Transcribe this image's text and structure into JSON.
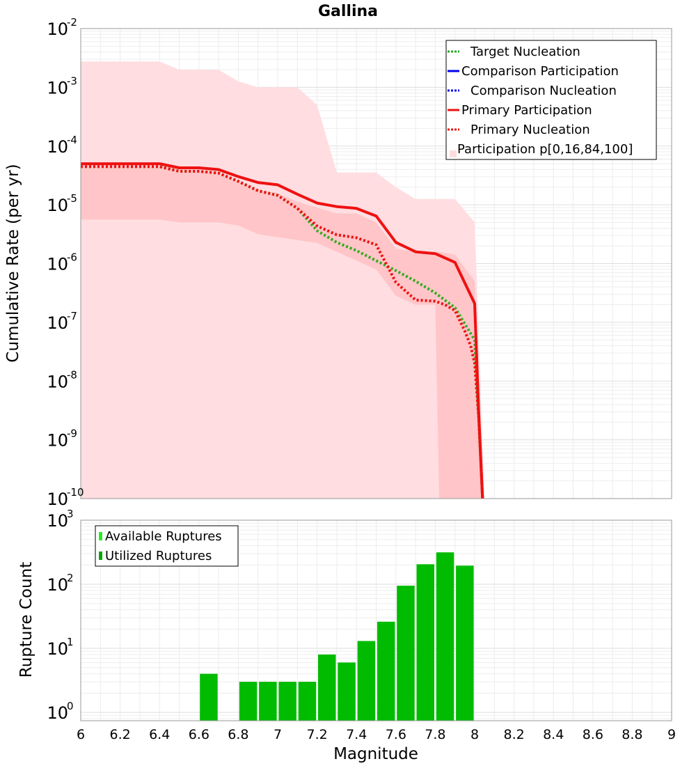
{
  "chart_data": [
    {
      "type": "line",
      "title": "Gallina",
      "xlabel": "",
      "ylabel": "Cumulative Rate (per yr)",
      "xlim": [
        6,
        9
      ],
      "ylim_log10": [
        -10,
        -2
      ],
      "y_ticks": [
        {
          "base": "10",
          "exp": "-2",
          "value": -2
        },
        {
          "base": "10",
          "exp": "-3",
          "value": -3
        },
        {
          "base": "10",
          "exp": "-4",
          "value": -4
        },
        {
          "base": "10",
          "exp": "-5",
          "value": -5
        },
        {
          "base": "10",
          "exp": "-6",
          "value": -6
        },
        {
          "base": "10",
          "exp": "-7",
          "value": -7
        },
        {
          "base": "10",
          "exp": "-8",
          "value": -8
        },
        {
          "base": "10",
          "exp": "-9",
          "value": -9
        },
        {
          "base": "10",
          "exp": "-10",
          "value": -10
        }
      ],
      "legend": [
        {
          "label": "Target Nucleation",
          "color": "#22aa22",
          "style": "dotted"
        },
        {
          "label": "Comparison Participation",
          "color": "#0000ee",
          "style": "solid"
        },
        {
          "label": "Comparison Nucleation",
          "color": "#0000ee",
          "style": "dotted"
        },
        {
          "label": "Primary Participation",
          "color": "#ee1111",
          "style": "solid"
        },
        {
          "label": "Primary Nucleation",
          "color": "#ee1111",
          "style": "dotted"
        },
        {
          "label": "Participation p[0,16,84,100]",
          "color": "#ffdddd",
          "style": "band"
        }
      ],
      "legend_position": "top-right",
      "bands": {
        "outer": {
          "color": "#ffdde0",
          "x": [
            6.0,
            6.1,
            6.2,
            6.3,
            6.4,
            6.5,
            6.6,
            6.7,
            6.8,
            6.9,
            7.0,
            7.1,
            7.2,
            7.3,
            7.4,
            7.5,
            7.6,
            7.7,
            7.8,
            7.9,
            8.0,
            8.05
          ],
          "upper_log10": [
            -2.56,
            -2.56,
            -2.56,
            -2.56,
            -2.56,
            -2.7,
            -2.7,
            -2.7,
            -2.9,
            -3.0,
            -3.0,
            -3.0,
            -3.3,
            -4.45,
            -4.45,
            -4.45,
            -4.7,
            -4.9,
            -4.9,
            -4.9,
            -5.3,
            -10
          ],
          "lower_log10": [
            -10,
            -10,
            -10,
            -10,
            -10,
            -10,
            -10,
            -10,
            -10,
            -10,
            -10,
            -10,
            -10,
            -10,
            -10,
            -10,
            -10,
            -10,
            -10,
            -10,
            -10,
            -10
          ]
        },
        "inner": {
          "color": "#ffc5c8",
          "x": [
            6.0,
            6.1,
            6.2,
            6.3,
            6.4,
            6.5,
            6.6,
            6.7,
            6.8,
            6.9,
            7.0,
            7.1,
            7.2,
            7.3,
            7.4,
            7.5,
            7.6,
            7.7,
            7.8,
            7.82,
            7.9,
            8.0,
            8.04
          ],
          "upper_log10": [
            -4.3,
            -4.3,
            -4.3,
            -4.3,
            -4.3,
            -4.4,
            -4.4,
            -4.45,
            -4.6,
            -4.75,
            -4.8,
            -4.95,
            -5.05,
            -5.15,
            -5.15,
            -5.3,
            -5.75,
            -5.8,
            -5.8,
            -5.8,
            -5.85,
            -6.3,
            -10
          ],
          "lower_log10": [
            -5.25,
            -5.25,
            -5.25,
            -5.25,
            -5.25,
            -5.3,
            -5.3,
            -5.3,
            -5.35,
            -5.5,
            -5.55,
            -5.6,
            -5.65,
            -5.8,
            -5.95,
            -6.1,
            -6.55,
            -6.7,
            -6.7,
            -10,
            -10,
            -10,
            -10
          ]
        }
      },
      "series": [
        {
          "name": "Primary Participation",
          "color": "#ee1111",
          "style": "solid",
          "x": [
            6.0,
            6.1,
            6.2,
            6.3,
            6.4,
            6.5,
            6.6,
            6.7,
            6.8,
            6.9,
            7.0,
            7.1,
            7.2,
            7.3,
            7.4,
            7.5,
            7.6,
            7.7,
            7.8,
            7.9,
            8.0,
            8.02,
            8.04
          ],
          "log10_y": [
            -4.3,
            -4.3,
            -4.3,
            -4.3,
            -4.3,
            -4.37,
            -4.37,
            -4.4,
            -4.52,
            -4.62,
            -4.66,
            -4.82,
            -4.97,
            -5.03,
            -5.06,
            -5.19,
            -5.64,
            -5.8,
            -5.83,
            -5.98,
            -6.68,
            -8.5,
            -10
          ]
        },
        {
          "name": "Primary Nucleation",
          "color": "#ee1111",
          "style": "dotted",
          "x": [
            6.0,
            6.1,
            6.2,
            6.3,
            6.4,
            6.5,
            6.6,
            6.7,
            6.8,
            6.9,
            7.0,
            7.1,
            7.2,
            7.3,
            7.4,
            7.5,
            7.6,
            7.7,
            7.8,
            7.85,
            7.9,
            7.95,
            7.98,
            8.0,
            8.02,
            8.04
          ],
          "log10_y": [
            -4.35,
            -4.35,
            -4.35,
            -4.35,
            -4.35,
            -4.43,
            -4.43,
            -4.46,
            -4.6,
            -4.76,
            -4.84,
            -5.06,
            -5.36,
            -5.51,
            -5.56,
            -5.68,
            -6.32,
            -6.62,
            -6.64,
            -6.7,
            -6.8,
            -7.15,
            -7.4,
            -7.7,
            -8.6,
            -10
          ]
        },
        {
          "name": "Target Nucleation",
          "color": "#33aa22",
          "style": "dotted",
          "x": [
            6.0,
            6.1,
            6.2,
            6.3,
            6.4,
            6.5,
            6.6,
            6.7,
            6.8,
            6.9,
            7.0,
            7.1,
            7.2,
            7.3,
            7.4,
            7.5,
            7.6,
            7.7,
            7.8,
            7.9,
            8.0,
            8.02,
            8.04
          ],
          "log10_y": [
            -4.35,
            -4.35,
            -4.35,
            -4.35,
            -4.35,
            -4.43,
            -4.43,
            -4.46,
            -4.6,
            -4.76,
            -4.84,
            -5.06,
            -5.44,
            -5.64,
            -5.78,
            -5.95,
            -6.12,
            -6.3,
            -6.5,
            -6.75,
            -7.3,
            -8.6,
            -10
          ]
        }
      ],
      "x_ticks": [
        "6",
        "6.2",
        "6.4",
        "6.6",
        "6.8",
        "7",
        "7.2",
        "7.4",
        "7.6",
        "7.8",
        "8",
        "8.2",
        "8.4",
        "8.6",
        "8.8",
        "9"
      ]
    },
    {
      "type": "bar",
      "title": "",
      "xlabel": "Magnitude",
      "ylabel": "Rupture Count",
      "xlim": [
        6,
        9
      ],
      "ylim_log10": [
        -0.13,
        3
      ],
      "y_ticks": [
        {
          "base": "10",
          "exp": "3",
          "value": 3
        },
        {
          "base": "10",
          "exp": "2",
          "value": 2
        },
        {
          "base": "10",
          "exp": "1",
          "value": 1
        },
        {
          "base": "10",
          "exp": "0",
          "value": 0
        }
      ],
      "x_ticks": [
        "6",
        "6.2",
        "6.4",
        "6.6",
        "6.8",
        "7",
        "7.2",
        "7.4",
        "7.6",
        "7.8",
        "8",
        "8.2",
        "8.4",
        "8.6",
        "8.8",
        "9"
      ],
      "legend": [
        {
          "label": "Available Ruptures",
          "color": "#22ee22"
        },
        {
          "label": "Utilized Ruptures",
          "color": "#00a800"
        }
      ],
      "legend_position": "top-left",
      "bar_width": 0.09,
      "bar_color": "#00bb00",
      "bins": [
        6.65,
        6.85,
        6.95,
        7.05,
        7.15,
        7.25,
        7.35,
        7.45,
        7.55,
        7.65,
        7.75,
        7.85,
        7.95
      ],
      "values": [
        4,
        3,
        3,
        3,
        3,
        8,
        6,
        13,
        26,
        95,
        205,
        315,
        195
      ]
    }
  ]
}
